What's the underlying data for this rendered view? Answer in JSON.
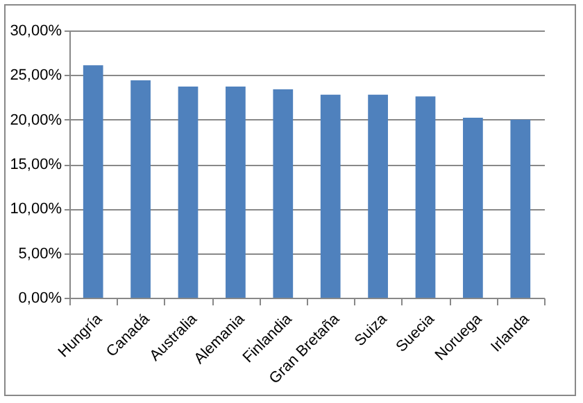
{
  "chart_data": {
    "type": "bar",
    "categories": [
      "Hungría",
      "Canadá",
      "Australia",
      "Alemania",
      "Finlandia",
      "Gran Bretaña",
      "Suiza",
      "Suecia",
      "Noruega",
      "Irlanda"
    ],
    "values": [
      26.1,
      24.4,
      23.7,
      23.7,
      23.4,
      22.8,
      22.8,
      22.6,
      20.2,
      20.0
    ],
    "color": "#4f81bd",
    "ylim": [
      0,
      30
    ],
    "yticks": [
      {
        "value": 0,
        "label": "0,00%"
      },
      {
        "value": 5,
        "label": "5,00%"
      },
      {
        "value": 10,
        "label": "10,00%"
      },
      {
        "value": 15,
        "label": "15,00%"
      },
      {
        "value": 20,
        "label": "20,00%"
      },
      {
        "value": 25,
        "label": "25,00%"
      },
      {
        "value": 30,
        "label": "30,00%"
      }
    ],
    "grid": "y"
  }
}
